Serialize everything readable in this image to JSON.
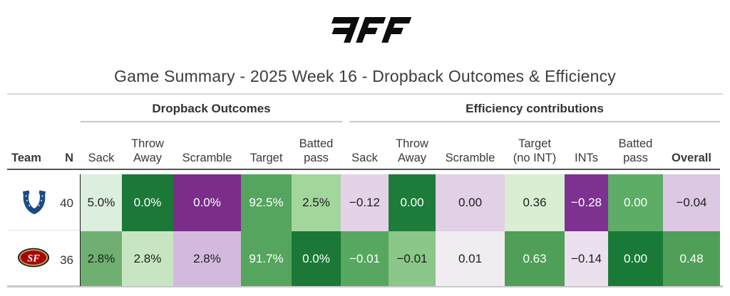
{
  "brand": {
    "logo_name": "PFF"
  },
  "title": "Game Summary - 2025 Week 16 - Dropback Outcomes & Efficiency",
  "table": {
    "groups": [
      {
        "label": "Dropback Outcomes"
      },
      {
        "label": "Efficiency contributions"
      }
    ],
    "columns": [
      "Team",
      "N",
      "Sack",
      "Throw\nAway",
      "Scramble",
      "Target",
      "Batted\npass",
      "Sack",
      "Throw\nAway",
      "Scramble",
      "Target\n(no INT)",
      "INTs",
      "Batted\npass",
      "Overall"
    ],
    "rows": [
      {
        "team": "Indianapolis Colts",
        "n": "40",
        "cells": [
          {
            "v": "5.0%",
            "bg": "#dceedd",
            "fg": "#1e1e1e",
            "dots": false
          },
          {
            "v": "0.0%",
            "bg": "#1b7837",
            "fg": "#ffffff",
            "dots": false
          },
          {
            "v": "0.0%",
            "bg": "#7b2d8a",
            "fg": "#ffffff",
            "dots": true
          },
          {
            "v": "92.5%",
            "bg": "#55a55f",
            "fg": "#ffffff",
            "dots": false
          },
          {
            "v": "2.5%",
            "bg": "#a3d69d",
            "fg": "#1e1e1e",
            "dots": false
          },
          {
            "v": "−0.12",
            "bg": "#e4d3e8",
            "fg": "#1e1e1e",
            "dots": true
          },
          {
            "v": "0.00",
            "bg": "#1e7c3a",
            "fg": "#ffffff",
            "dots": false
          },
          {
            "v": "0.00",
            "bg": "#e2d0e6",
            "fg": "#1e1e1e",
            "dots": true
          },
          {
            "v": "0.36",
            "bg": "#d9eed3",
            "fg": "#1e1e1e",
            "dots": false
          },
          {
            "v": "−0.28",
            "bg": "#7d3190",
            "fg": "#ffffff",
            "dots": true
          },
          {
            "v": "0.00",
            "bg": "#5dad66",
            "fg": "#ffffff",
            "dots": false
          },
          {
            "v": "−0.04",
            "bg": "#dcc8e2",
            "fg": "#1e1e1e",
            "dots": true
          }
        ]
      },
      {
        "team": "San Francisco 49ers",
        "n": "36",
        "cells": [
          {
            "v": "2.8%",
            "bg": "#6fb072",
            "fg": "#1e1e1e",
            "dots": false
          },
          {
            "v": "2.8%",
            "bg": "#c7e5c1",
            "fg": "#1e1e1e",
            "dots": false
          },
          {
            "v": "2.8%",
            "bg": "#d3b9de",
            "fg": "#1e1e1e",
            "dots": true
          },
          {
            "v": "91.7%",
            "bg": "#55a55f",
            "fg": "#ffffff",
            "dots": false
          },
          {
            "v": "0.0%",
            "bg": "#1b7837",
            "fg": "#ffffff",
            "dots": false
          },
          {
            "v": "−0.01",
            "bg": "#56a75f",
            "fg": "#ffffff",
            "dots": false
          },
          {
            "v": "−0.01",
            "bg": "#8bc789",
            "fg": "#1e1e1e",
            "dots": false
          },
          {
            "v": "0.01",
            "bg": "#f1ecf2",
            "fg": "#1e1e1e",
            "dots": false
          },
          {
            "v": "0.63",
            "bg": "#4f9f59",
            "fg": "#ffffff",
            "dots": false
          },
          {
            "v": "−0.14",
            "bg": "#ebe0ee",
            "fg": "#1e1e1e",
            "dots": true
          },
          {
            "v": "0.00",
            "bg": "#197a37",
            "fg": "#ffffff",
            "dots": false
          },
          {
            "v": "0.48",
            "bg": "#4f9f59",
            "fg": "#ffffff",
            "dots": false
          }
        ]
      }
    ]
  },
  "chart_data": {
    "type": "table",
    "title": "Game Summary - 2025 Week 16 - Dropback Outcomes & Efficiency",
    "column_groups": [
      {
        "label": "Dropback Outcomes",
        "columns": [
          "Sack",
          "Throw Away",
          "Scramble",
          "Target",
          "Batted pass"
        ]
      },
      {
        "label": "Efficiency contributions",
        "columns": [
          "Sack",
          "Throw Away",
          "Scramble",
          "Target (no INT)",
          "INTs",
          "Batted pass",
          "Overall"
        ]
      }
    ],
    "legend_note": "green = positive/good, purple = negative/bad (PRGn diverging palette)",
    "rows": [
      {
        "team": "Indianapolis Colts",
        "N": 40,
        "dropback_outcomes": {
          "sack_pct": 5.0,
          "throw_away_pct": 0.0,
          "scramble_pct": 0.0,
          "target_pct": 92.5,
          "batted_pass_pct": 2.5
        },
        "efficiency_contributions": {
          "sack": -0.12,
          "throw_away": 0.0,
          "scramble": 0.0,
          "target_no_int": 0.36,
          "ints": -0.28,
          "batted_pass": 0.0,
          "overall": -0.04
        }
      },
      {
        "team": "San Francisco 49ers",
        "N": 36,
        "dropback_outcomes": {
          "sack_pct": 2.8,
          "throw_away_pct": 2.8,
          "scramble_pct": 2.8,
          "target_pct": 91.7,
          "batted_pass_pct": 0.0
        },
        "efficiency_contributions": {
          "sack": -0.01,
          "throw_away": -0.01,
          "scramble": 0.01,
          "target_no_int": 0.63,
          "ints": -0.14,
          "batted_pass": 0.0,
          "overall": 0.48
        }
      }
    ]
  }
}
